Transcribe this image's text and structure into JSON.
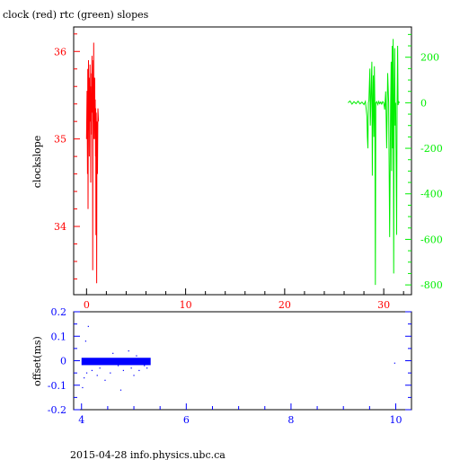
{
  "title": "clock (red) rtc (green) slopes",
  "footer": "2015-04-28 info.physics.ubc.ca",
  "colors": {
    "clock": "#ff0000",
    "rtc": "#00ee00",
    "offset": "#0000ff",
    "axis": "#000000"
  },
  "chart_data": [
    {
      "type": "line",
      "title": "clock (red) rtc (green) slopes",
      "xlabel": "",
      "ylabel": "clockslope",
      "xlim": [
        -1.3,
        32.8
      ],
      "ylim": [
        33.22,
        36.28
      ],
      "xticks": [
        0,
        10,
        20,
        30
      ],
      "y_left_ticks": [
        34,
        35,
        36
      ],
      "y_right": {
        "ylim": [
          -843,
          333
        ],
        "ticks": [
          200,
          0,
          -200,
          -400,
          -600,
          -800
        ]
      },
      "grid": false,
      "series": [
        {
          "name": "clock",
          "axis": "left",
          "points": [
            [
              0.0,
              35.0
            ],
            [
              0.05,
              35.55
            ],
            [
              0.1,
              34.6
            ],
            [
              0.12,
              35.8
            ],
            [
              0.15,
              34.2
            ],
            [
              0.18,
              35.3
            ],
            [
              0.2,
              35.9
            ],
            [
              0.22,
              35.1
            ],
            [
              0.25,
              35.6
            ],
            [
              0.28,
              34.8
            ],
            [
              0.3,
              35.7
            ],
            [
              0.32,
              35.2
            ],
            [
              0.35,
              35.85
            ],
            [
              0.38,
              35.35
            ],
            [
              0.4,
              35.6
            ],
            [
              0.42,
              34.5
            ],
            [
              0.45,
              35.5
            ],
            [
              0.48,
              35.05
            ],
            [
              0.5,
              35.75
            ],
            [
              0.52,
              35.3
            ],
            [
              0.55,
              35.95
            ],
            [
              0.58,
              35.4
            ],
            [
              0.6,
              35.7
            ],
            [
              0.62,
              33.5
            ],
            [
              0.65,
              35.5
            ],
            [
              0.68,
              35.9
            ],
            [
              0.7,
              35.2
            ],
            [
              0.72,
              36.1
            ],
            [
              0.75,
              35.0
            ],
            [
              0.78,
              35.6
            ],
            [
              0.8,
              35.2
            ],
            [
              0.82,
              35.7
            ],
            [
              0.85,
              35.0
            ],
            [
              0.88,
              35.45
            ],
            [
              0.9,
              34.8
            ],
            [
              0.92,
              35.35
            ],
            [
              0.95,
              33.9
            ],
            [
              0.98,
              35.3
            ],
            [
              1.0,
              35.1
            ],
            [
              1.02,
              33.35
            ],
            [
              1.05,
              35.2
            ],
            [
              1.1,
              34.6
            ],
            [
              1.15,
              35.35
            ],
            [
              1.2,
              35.2
            ]
          ]
        },
        {
          "name": "rtc",
          "axis": "right",
          "points": [
            [
              26.4,
              0
            ],
            [
              26.6,
              8
            ],
            [
              26.8,
              -6
            ],
            [
              27.0,
              5
            ],
            [
              27.2,
              -4
            ],
            [
              27.4,
              7
            ],
            [
              27.6,
              -5
            ],
            [
              27.8,
              3
            ],
            [
              28.0,
              -8
            ],
            [
              28.15,
              6
            ],
            [
              28.3,
              -60
            ],
            [
              28.35,
              -150
            ],
            [
              28.4,
              -200
            ],
            [
              28.45,
              0
            ],
            [
              28.5,
              10
            ],
            [
              28.6,
              150
            ],
            [
              28.65,
              -100
            ],
            [
              28.7,
              0
            ],
            [
              28.8,
              180
            ],
            [
              28.85,
              -320
            ],
            [
              28.9,
              0
            ],
            [
              28.95,
              120
            ],
            [
              29.0,
              -150
            ],
            [
              29.05,
              160
            ],
            [
              29.1,
              0
            ],
            [
              29.15,
              -800
            ],
            [
              29.2,
              0
            ],
            [
              29.3,
              5
            ],
            [
              29.4,
              -8
            ],
            [
              29.5,
              6
            ],
            [
              29.6,
              -4
            ],
            [
              29.7,
              3
            ],
            [
              29.8,
              -6
            ],
            [
              29.9,
              5
            ],
            [
              30.0,
              0
            ],
            [
              30.1,
              -30
            ],
            [
              30.2,
              50
            ],
            [
              30.3,
              -200
            ],
            [
              30.4,
              130
            ],
            [
              30.5,
              0
            ],
            [
              30.6,
              -590
            ],
            [
              30.7,
              0
            ],
            [
              30.75,
              180
            ],
            [
              30.8,
              -300
            ],
            [
              30.85,
              250
            ],
            [
              30.9,
              -200
            ],
            [
              30.95,
              280
            ],
            [
              31.0,
              -750
            ],
            [
              31.05,
              0
            ],
            [
              31.1,
              240
            ],
            [
              31.15,
              -100
            ],
            [
              31.2,
              0
            ],
            [
              31.3,
              -580
            ],
            [
              31.35,
              0
            ],
            [
              31.4,
              250
            ],
            [
              31.45,
              -10
            ],
            [
              31.5,
              5
            ],
            [
              31.6,
              0
            ]
          ]
        }
      ]
    },
    {
      "type": "scatter",
      "xlabel": "",
      "ylabel": "offset(ms)",
      "xlim": [
        3.85,
        10.3
      ],
      "ylim": [
        -0.2,
        0.2
      ],
      "xticks": [
        4,
        6,
        8,
        10
      ],
      "yticks": [
        0.2,
        0.1,
        0,
        -0.1,
        -0.2
      ],
      "grid": false,
      "series": [
        {
          "name": "offset",
          "points": [
            [
              4.08,
              0.08
            ],
            [
              4.13,
              0.14
            ],
            [
              4.02,
              -0.11
            ],
            [
              4.05,
              -0.07
            ],
            [
              4.1,
              -0.05
            ],
            [
              4.2,
              -0.04
            ],
            [
              4.3,
              -0.06
            ],
            [
              4.35,
              -0.03
            ],
            [
              4.45,
              -0.08
            ],
            [
              4.55,
              -0.05
            ],
            [
              4.6,
              0.03
            ],
            [
              4.7,
              -0.02
            ],
            [
              4.75,
              -0.12
            ],
            [
              4.8,
              -0.04
            ],
            [
              4.9,
              0.04
            ],
            [
              4.95,
              -0.03
            ],
            [
              5.0,
              -0.06
            ],
            [
              5.05,
              0.02
            ],
            [
              5.1,
              -0.04
            ],
            [
              5.2,
              -0.02
            ],
            [
              5.25,
              -0.03
            ],
            [
              9.98,
              -0.01
            ]
          ],
          "band": {
            "x": [
              4.0,
              5.32
            ],
            "y": [
              -0.018,
              0.012
            ]
          }
        }
      ]
    }
  ]
}
